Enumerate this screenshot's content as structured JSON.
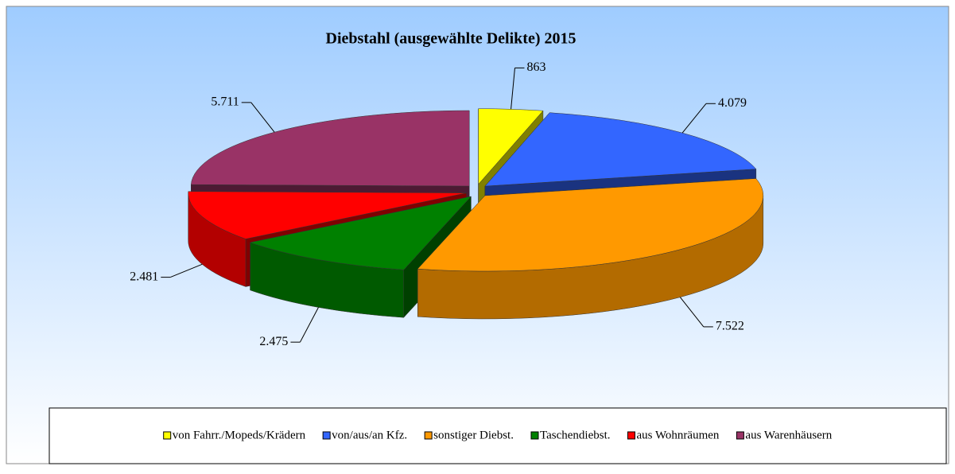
{
  "chart_data": {
    "type": "pie",
    "title": "Diebstahl (ausgewählte Delikte) 2015",
    "categories": [
      "von Fahrr./Mopeds/Krädern",
      "von/aus/an Kfz.",
      "sonstiger Diebst.",
      "Taschendiebst.",
      "aus Wohnräumen",
      "aus Warenhäusern"
    ],
    "values": [
      863,
      4079,
      7522,
      2475,
      2481,
      5711
    ],
    "value_labels": [
      "863",
      "4.079",
      "7.522",
      "2.475",
      "2.481",
      "5.711"
    ],
    "colors": [
      "#ffff00",
      "#3366ff",
      "#ff9900",
      "#008000",
      "#ff0000",
      "#993366"
    ],
    "legend": "bottom"
  }
}
